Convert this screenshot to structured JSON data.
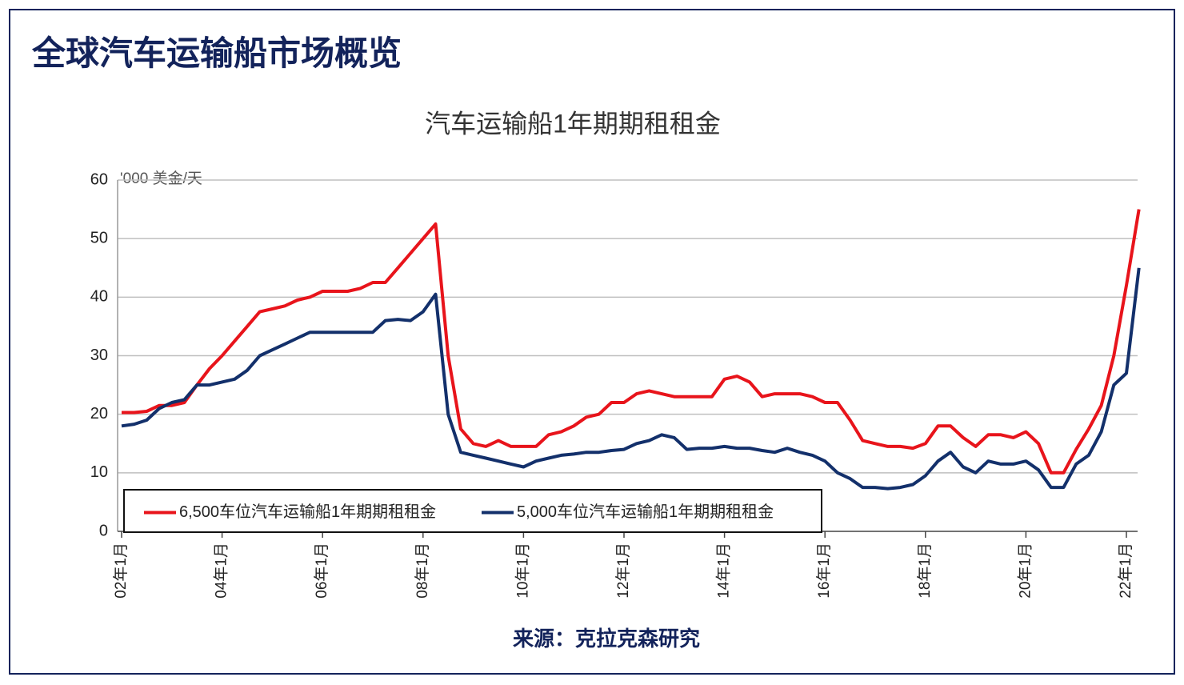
{
  "header": {
    "title": "全球汽车运输船市场概览"
  },
  "chart_data": {
    "type": "line",
    "title": "汽车运输船1年期期租租金",
    "y_label": "'000 美金/天",
    "categories": [
      "02年1月",
      null,
      null,
      null,
      null,
      null,
      null,
      null,
      "04年1月",
      null,
      null,
      null,
      null,
      null,
      null,
      null,
      "06年1月",
      null,
      null,
      null,
      null,
      null,
      null,
      null,
      "08年1月",
      null,
      null,
      null,
      null,
      null,
      null,
      null,
      "10年1月",
      null,
      null,
      null,
      null,
      null,
      null,
      null,
      "12年1月",
      null,
      null,
      null,
      null,
      null,
      null,
      null,
      "14年1月",
      null,
      null,
      null,
      null,
      null,
      null,
      null,
      "16年1月",
      null,
      null,
      null,
      null,
      null,
      null,
      null,
      "18年1月",
      null,
      null,
      null,
      null,
      null,
      null,
      null,
      "20年1月",
      null,
      null,
      null,
      null,
      null,
      null,
      null,
      "22年1月",
      null
    ],
    "series": [
      {
        "name": "6,500车位汽车运输船1年期期租租金",
        "color": "#e8141b",
        "values": [
          20.3,
          20.3,
          20.5,
          21.5,
          21.5,
          22,
          25,
          27.8,
          30,
          32.5,
          35,
          37.5,
          38,
          38.5,
          39.5,
          40,
          41,
          41,
          41,
          41.5,
          42.5,
          42.5,
          45,
          47.5,
          50,
          52.5,
          30,
          17.5,
          15,
          14.5,
          15.5,
          14.5,
          14.5,
          14.5,
          16.5,
          17,
          18,
          19.5,
          20,
          22,
          22,
          23.5,
          24,
          23.5,
          23,
          23,
          23,
          23,
          26,
          26.5,
          25.5,
          23,
          23.5,
          23.5,
          23.5,
          23,
          22,
          22,
          19,
          15.5,
          15,
          14.5,
          14.5,
          14.2,
          15,
          18,
          18,
          16,
          14.5,
          16.5,
          16.5,
          16,
          17,
          15,
          10,
          10,
          14,
          17.5,
          21.5,
          30,
          42,
          55
        ]
      },
      {
        "name": "5,000车位汽车运输船1年期期租租金",
        "color": "#13306b",
        "values": [
          18,
          18.3,
          19,
          21,
          22,
          22.5,
          25,
          25,
          25.5,
          26,
          27.5,
          30,
          31,
          32,
          33,
          34,
          34,
          34,
          34,
          34,
          34,
          36,
          36.2,
          36,
          37.5,
          40.5,
          20,
          13.5,
          13,
          12.5,
          12,
          11.5,
          11,
          12,
          12.5,
          13,
          13.2,
          13.5,
          13.5,
          13.8,
          14,
          15,
          15.5,
          16.5,
          16,
          14,
          14.2,
          14.2,
          14.5,
          14.2,
          14.2,
          13.8,
          13.5,
          14.2,
          13.5,
          13,
          12,
          10,
          9,
          7.5,
          7.5,
          7.3,
          7.5,
          8,
          9.5,
          12,
          13.5,
          11,
          10,
          12,
          11.5,
          11.5,
          12,
          10.5,
          7.5,
          7.5,
          11.5,
          13,
          17,
          25,
          27,
          45
        ]
      }
    ],
    "ylim": [
      0,
      60
    ],
    "yticks": [
      0,
      10,
      20,
      30,
      40,
      50,
      60
    ],
    "grid": true,
    "legend": "bottom-left",
    "source": "来源：克拉克森研究"
  }
}
